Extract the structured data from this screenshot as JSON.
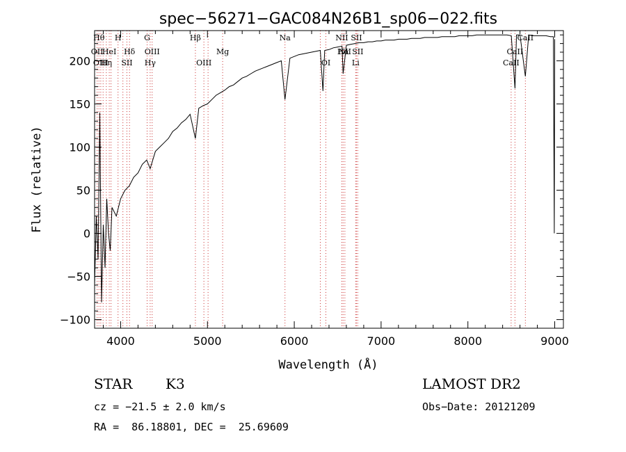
{
  "chart_data": {
    "type": "line",
    "title": "spec−56271−GAC084N26B1_sp06−022.fits",
    "xlabel": "Wavelength (Å)",
    "ylabel": "Flux (relative)",
    "xlim": [
      3700,
      9100
    ],
    "ylim": [
      -110,
      235
    ],
    "xticks": [
      4000,
      5000,
      6000,
      7000,
      8000,
      9000
    ],
    "yticks": [
      -100,
      -50,
      0,
      50,
      100,
      150,
      200
    ],
    "ytick_labels": [
      "−100",
      "−50",
      "0",
      "50",
      "100",
      "150",
      "200"
    ],
    "grid": false,
    "line_color": "#000000",
    "marker_color": "#cc3333",
    "series": [
      {
        "x": [
          3700,
          3720,
          3740,
          3760,
          3780,
          3800,
          3820,
          3840,
          3860,
          3880,
          3900,
          3950,
          4000,
          4050,
          4100,
          4150,
          4200,
          4250,
          4300,
          4340,
          4400,
          4450,
          4500,
          4550,
          4600,
          4650,
          4700,
          4750,
          4800,
          4861,
          4900,
          4950,
          5000,
          5050,
          5100,
          5150,
          5200,
          5250,
          5300,
          5350,
          5400,
          5450,
          5500,
          5550,
          5600,
          5650,
          5700,
          5750,
          5800,
          5850,
          5893,
          5950,
          6000,
          6050,
          6100,
          6150,
          6200,
          6250,
          6300,
          6330,
          6350,
          6400,
          6450,
          6500,
          6550,
          6563,
          6600,
          6650,
          6700,
          6750,
          6800,
          6850,
          6900,
          6950,
          7000,
          7050,
          7100,
          7150,
          7200,
          7250,
          7300,
          7350,
          7400,
          7450,
          7500,
          7550,
          7600,
          7650,
          7700,
          7750,
          7800,
          7850,
          7900,
          7950,
          8000,
          8050,
          8100,
          8150,
          8200,
          8250,
          8300,
          8350,
          8400,
          8450,
          8500,
          8542,
          8560,
          8600,
          8662,
          8700,
          8750,
          8800,
          8850,
          8900,
          8950,
          8985,
          8995,
          9000
        ],
        "y": [
          -60,
          20,
          -30,
          140,
          -80,
          10,
          -40,
          40,
          0,
          -20,
          30,
          20,
          40,
          50,
          55,
          65,
          70,
          80,
          85,
          75,
          95,
          100,
          105,
          110,
          118,
          122,
          128,
          132,
          138,
          110,
          145,
          148,
          150,
          155,
          160,
          163,
          166,
          170,
          172,
          176,
          180,
          182,
          185,
          188,
          190,
          192,
          194,
          196,
          198,
          200,
          155,
          203,
          205,
          207,
          208,
          209,
          210,
          211,
          212,
          165,
          212,
          213,
          215,
          216,
          217,
          185,
          218,
          219,
          220,
          221,
          221,
          222,
          222,
          223,
          223,
          224,
          224,
          224,
          225,
          225,
          225,
          226,
          226,
          226,
          227,
          227,
          227,
          227,
          228,
          228,
          228,
          228,
          229,
          229,
          229,
          229,
          230,
          230,
          230,
          230,
          230,
          230,
          230,
          230,
          229,
          168,
          230,
          230,
          182,
          230,
          229,
          229,
          229,
          229,
          228,
          228,
          0,
          225
        ]
      }
    ],
    "lines": [
      {
        "x": 3729,
        "label": "OII",
        "tier": 2
      },
      {
        "x": 3750,
        "label": "Hθ",
        "tier": 0
      },
      {
        "x": 3771,
        "label": "OIII",
        "tier": 3
      },
      {
        "x": 3798,
        "label": "",
        "tier": -1
      },
      {
        "x": 3835,
        "label": "Hη",
        "tier": 3
      },
      {
        "x": 3869,
        "label": "HeI",
        "tier": 2
      },
      {
        "x": 3889,
        "label": "",
        "tier": -1
      },
      {
        "x": 3970,
        "label": "H",
        "tier": 0
      },
      {
        "x": 4026,
        "label": "",
        "tier": -1
      },
      {
        "x": 4072,
        "label": "SII",
        "tier": 3
      },
      {
        "x": 4102,
        "label": "Hδ",
        "tier": 2
      },
      {
        "x": 4305,
        "label": "G",
        "tier": 0
      },
      {
        "x": 4340,
        "label": "Hγ",
        "tier": 3
      },
      {
        "x": 4363,
        "label": "OIII",
        "tier": 2
      },
      {
        "x": 4861,
        "label": "Hβ",
        "tier": 0
      },
      {
        "x": 4959,
        "label": "OIII",
        "tier": 3
      },
      {
        "x": 5007,
        "label": "",
        "tier": -1
      },
      {
        "x": 5175,
        "label": "Mg",
        "tier": 2
      },
      {
        "x": 5893,
        "label": "Na",
        "tier": 0
      },
      {
        "x": 6300,
        "label": "",
        "tier": -1
      },
      {
        "x": 6364,
        "label": "OI",
        "tier": 3
      },
      {
        "x": 6548,
        "label": "NII",
        "tier": 0
      },
      {
        "x": 6563,
        "label": "Hα",
        "tier": 2
      },
      {
        "x": 6583,
        "label": "NII",
        "tier": 2
      },
      {
        "x": 6707,
        "label": "Li",
        "tier": 3
      },
      {
        "x": 6716,
        "label": "SII",
        "tier": 0
      },
      {
        "x": 6731,
        "label": "SII",
        "tier": 2
      },
      {
        "x": 8498,
        "label": "CaII",
        "tier": 3
      },
      {
        "x": 8542,
        "label": "CaII",
        "tier": 2
      },
      {
        "x": 8662,
        "label": "CaII",
        "tier": 0
      }
    ]
  },
  "info": {
    "class_label": "STAR",
    "subclass": "K3",
    "survey": "LAMOST DR2",
    "cz": "cz = −21.5 ± 2.0 km/s",
    "obs_date": "Obs−Date: 20121209",
    "coords": "RA =  86.18801, DEC =  25.69609"
  }
}
